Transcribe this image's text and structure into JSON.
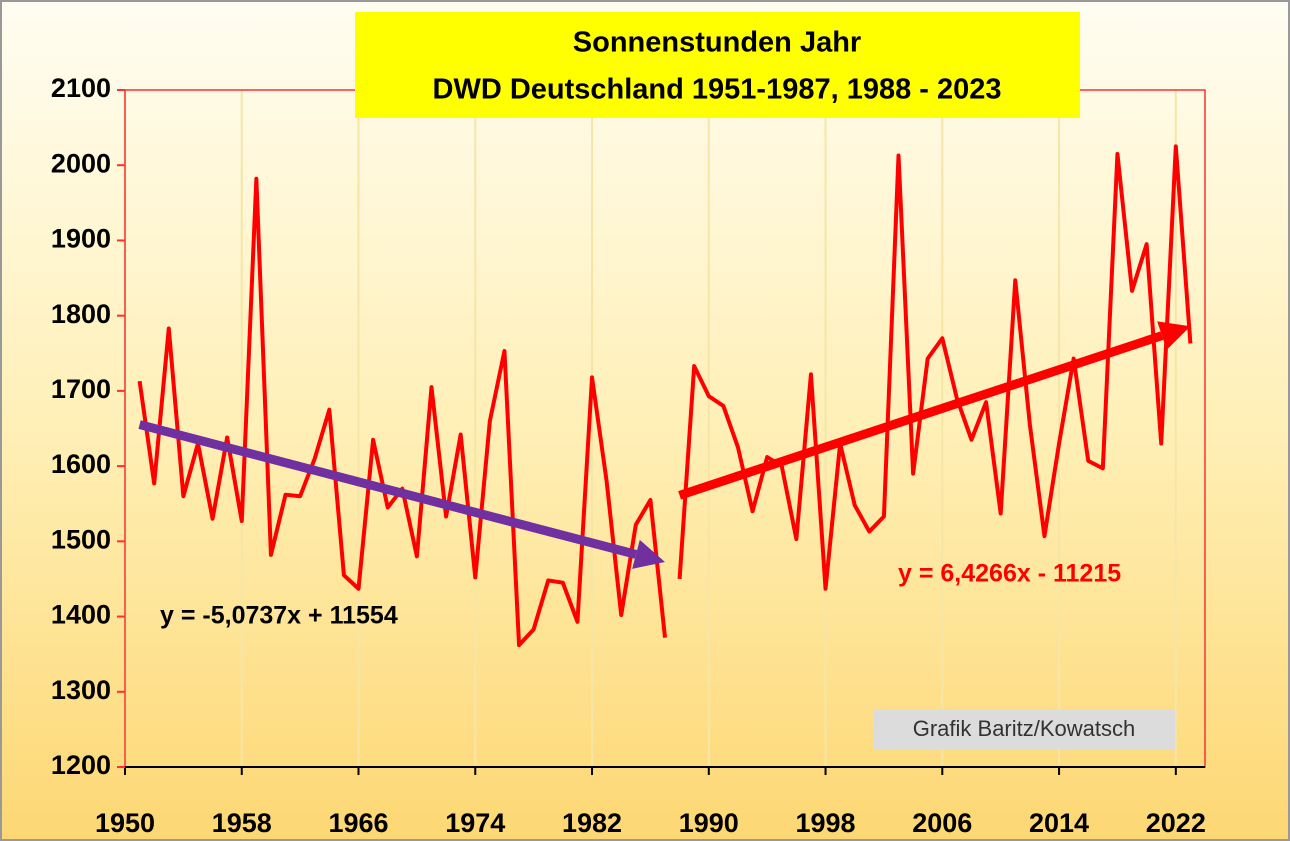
{
  "chart_data": {
    "type": "line",
    "title": [
      "Sonnenstunden Jahr",
      "DWD Deutschland 1951-1987, 1988 - 2023"
    ],
    "series": [
      {
        "color": "#ff0000",
        "x": [
          1951,
          1952,
          1953,
          1954,
          1955,
          1956,
          1957,
          1958,
          1959,
          1960,
          1961,
          1962,
          1963,
          1964,
          1965,
          1966,
          1967,
          1968,
          1969,
          1970,
          1971,
          1972,
          1973,
          1974,
          1975,
          1976,
          1977,
          1978,
          1979,
          1980,
          1981,
          1982,
          1983,
          1984,
          1985,
          1986,
          1987
        ],
        "values": [
          1713,
          1577,
          1783,
          1560,
          1630,
          1530,
          1638,
          1527,
          1982,
          1482,
          1562,
          1560,
          1610,
          1675,
          1455,
          1437,
          1635,
          1545,
          1570,
          1480,
          1705,
          1533,
          1642,
          1452,
          1660,
          1753,
          1362,
          1383,
          1448,
          1445,
          1393,
          1718,
          1580,
          1402,
          1522,
          1555,
          1372
        ]
      },
      {
        "color": "#ff0000",
        "x": [
          1988,
          1989,
          1990,
          1991,
          1992,
          1993,
          1994,
          1995,
          1996,
          1997,
          1998,
          1999,
          2000,
          2001,
          2002,
          2003,
          2004,
          2005,
          2006,
          2007,
          2008,
          2009,
          2010,
          2011,
          2012,
          2013,
          2014,
          2015,
          2016,
          2017,
          2018,
          2019,
          2020,
          2021,
          2022,
          2023
        ],
        "values": [
          1450,
          1733,
          1693,
          1680,
          1625,
          1540,
          1612,
          1600,
          1503,
          1722,
          1437,
          1630,
          1548,
          1513,
          1533,
          2013,
          1590,
          1743,
          1770,
          1690,
          1635,
          1685,
          1537,
          1847,
          1655,
          1507,
          1630,
          1743,
          1607,
          1597,
          2015,
          1833,
          1895,
          1630,
          2025,
          1763
        ]
      }
    ],
    "trends": [
      {
        "label": "y = -5,0737x + 11554",
        "slope": -5.0737,
        "intercept": 11554,
        "x": [
          1951,
          1987
        ],
        "color": "#7030a0",
        "label_color": "#000000"
      },
      {
        "label": "y = 6,4266x - 11215",
        "slope": 6.4266,
        "intercept": -11215,
        "x": [
          1988,
          2023
        ],
        "color": "#ff0000",
        "label_color": "#ff0000"
      }
    ],
    "credit": "Grafik Baritz/Kowatsch",
    "xlim": [
      1950,
      2024
    ],
    "xticks": [
      1950,
      1958,
      1966,
      1974,
      1982,
      1990,
      1998,
      2006,
      2014,
      2022
    ],
    "ylim": [
      1200,
      2100
    ],
    "yticks": [
      1200,
      1300,
      1400,
      1500,
      1600,
      1700,
      1800,
      1900,
      2000,
      2100
    ],
    "grid": "x"
  }
}
